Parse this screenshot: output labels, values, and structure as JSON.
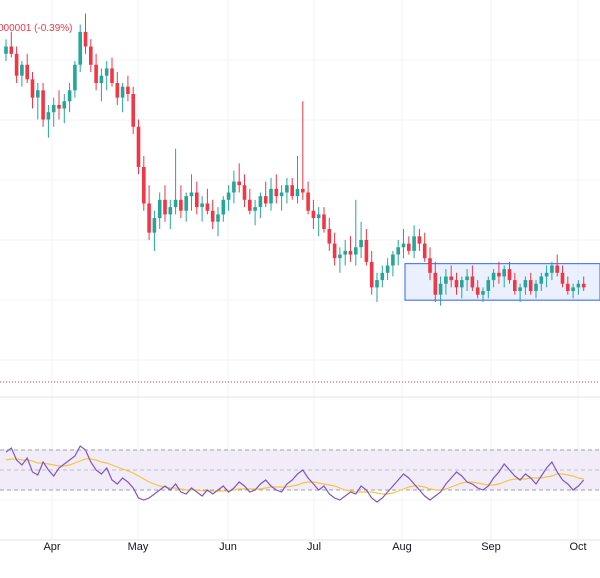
{
  "header": {
    "change_text": "000001 (-0.39%)"
  },
  "colors": {
    "up": "#26a69a",
    "down": "#f23645",
    "grid": "#f0f3fa",
    "range_box_stroke": "#2962ff",
    "range_box_fill": "#dbe4ff",
    "rsi_line": "#7e57c2",
    "rsi_ma": "#f5c542",
    "rsi_band": "#ede7f6",
    "rsi_band_border": "#9e9eb0",
    "price_line": "#f23645"
  },
  "chart_data": [
    {
      "type": "candlestick",
      "months": [
        "Apr",
        "May",
        "Jun",
        "Jul",
        "Aug",
        "Sep",
        "Oct"
      ],
      "price_scale": {
        "min": 0,
        "max": 100,
        "note_units": "relative"
      },
      "range_box": {
        "start": "2024-08-01",
        "end": "2024-10-09",
        "low": 20.5,
        "high": 30.5
      },
      "current_price_line": 0.6,
      "candles": [
        [
          88,
          92,
          86,
          90
        ],
        [
          90,
          94,
          87,
          88
        ],
        [
          88,
          90,
          80,
          82
        ],
        [
          82,
          86,
          79,
          85
        ],
        [
          85,
          88,
          80,
          81
        ],
        [
          81,
          83,
          73,
          76
        ],
        [
          76,
          80,
          70,
          78
        ],
        [
          78,
          80,
          68,
          70
        ],
        [
          70,
          74,
          65,
          72
        ],
        [
          72,
          76,
          68,
          74
        ],
        [
          74,
          78,
          70,
          73
        ],
        [
          73,
          77,
          69,
          75
        ],
        [
          75,
          80,
          72,
          78
        ],
        [
          78,
          86,
          76,
          85
        ],
        [
          85,
          96,
          83,
          94
        ],
        [
          94,
          99,
          88,
          90
        ],
        [
          90,
          92,
          83,
          85
        ],
        [
          85,
          88,
          78,
          80
        ],
        [
          80,
          84,
          75,
          82
        ],
        [
          82,
          86,
          78,
          84
        ],
        [
          84,
          87,
          79,
          80
        ],
        [
          80,
          83,
          74,
          76
        ],
        [
          76,
          80,
          72,
          79
        ],
        [
          79,
          82,
          75,
          77
        ],
        [
          77,
          79,
          66,
          68
        ],
        [
          68,
          70,
          55,
          57
        ],
        [
          57,
          60,
          45,
          47
        ],
        [
          47,
          52,
          37,
          39
        ],
        [
          39,
          45,
          34,
          43
        ],
        [
          43,
          50,
          40,
          48
        ],
        [
          48,
          52,
          42,
          44
        ],
        [
          44,
          48,
          40,
          46
        ],
        [
          46,
          62,
          44,
          48
        ],
        [
          48,
          52,
          43,
          45
        ],
        [
          45,
          50,
          42,
          49
        ],
        [
          49,
          55,
          45,
          50
        ],
        [
          50,
          53,
          44,
          46
        ],
        [
          46,
          49,
          42,
          47
        ],
        [
          47,
          51,
          44,
          45
        ],
        [
          45,
          48,
          40,
          42
        ],
        [
          42,
          46,
          38,
          44
        ],
        [
          44,
          49,
          42,
          48
        ],
        [
          48,
          52,
          45,
          50
        ],
        [
          50,
          56,
          47,
          53
        ],
        [
          53,
          58,
          50,
          52
        ],
        [
          52,
          55,
          46,
          48
        ],
        [
          48,
          51,
          44,
          45
        ],
        [
          45,
          48,
          41,
          46
        ],
        [
          46,
          50,
          43,
          49
        ],
        [
          49,
          53,
          46,
          47
        ],
        [
          47,
          54,
          45,
          51
        ],
        [
          51,
          55,
          47,
          49
        ],
        [
          49,
          52,
          45,
          50
        ],
        [
          50,
          54,
          47,
          52
        ],
        [
          52,
          54,
          48,
          49
        ],
        [
          49,
          60,
          47,
          51
        ],
        [
          51,
          75,
          48,
          50
        ],
        [
          50,
          53,
          44,
          45
        ],
        [
          45,
          48,
          40,
          43
        ],
        [
          43,
          46,
          38,
          44
        ],
        [
          44,
          46,
          39,
          40
        ],
        [
          40,
          43,
          34,
          36
        ],
        [
          36,
          39,
          30,
          32
        ],
        [
          32,
          35,
          28,
          33
        ],
        [
          33,
          37,
          30,
          34
        ],
        [
          34,
          38,
          31,
          33
        ],
        [
          33,
          48,
          30,
          35
        ],
        [
          35,
          42,
          32,
          37
        ],
        [
          37,
          40,
          30,
          31
        ],
        [
          31,
          34,
          22,
          24
        ],
        [
          24,
          28,
          20,
          26
        ],
        [
          26,
          30,
          24,
          28
        ],
        [
          28,
          32,
          26,
          30
        ],
        [
          30,
          34,
          27,
          33
        ],
        [
          33,
          37,
          30,
          35
        ],
        [
          35,
          40,
          32,
          36
        ],
        [
          36,
          38,
          33,
          34
        ],
        [
          34,
          41,
          32,
          38
        ],
        [
          38,
          40,
          34,
          36
        ],
        [
          36,
          39,
          31,
          32
        ],
        [
          32,
          35,
          26,
          28
        ],
        [
          28,
          31,
          20,
          22
        ],
        [
          22,
          27,
          19,
          25
        ],
        [
          25,
          29,
          22,
          27
        ],
        [
          27,
          30,
          24,
          26
        ],
        [
          26,
          28,
          22,
          24
        ],
        [
          24,
          27,
          21,
          26
        ],
        [
          26,
          29,
          23,
          27
        ],
        [
          27,
          30,
          23,
          24
        ],
        [
          24,
          26,
          21,
          22
        ],
        [
          22,
          24,
          20,
          23
        ],
        [
          23,
          27,
          21,
          26
        ],
        [
          26,
          29,
          24,
          28
        ],
        [
          28,
          31,
          25,
          27
        ],
        [
          27,
          30,
          24,
          29
        ],
        [
          29,
          31,
          25,
          26
        ],
        [
          26,
          28,
          22,
          23
        ],
        [
          23,
          25,
          20,
          24
        ],
        [
          24,
          27,
          22,
          26
        ],
        [
          26,
          28,
          22,
          23
        ],
        [
          23,
          26,
          21,
          25
        ],
        [
          25,
          28,
          23,
          27
        ],
        [
          27,
          30,
          24,
          28
        ],
        [
          28,
          31,
          26,
          30
        ],
        [
          30,
          33,
          27,
          28
        ],
        [
          28,
          30,
          24,
          25
        ],
        [
          25,
          27,
          22,
          23
        ],
        [
          23,
          25,
          21,
          24
        ],
        [
          24,
          26,
          22,
          25
        ],
        [
          25,
          27,
          23,
          24
        ]
      ]
    },
    {
      "type": "line",
      "indicator": "RSI",
      "ylim": [
        0,
        100
      ],
      "bands": [
        30,
        50,
        70
      ],
      "series": [
        {
          "values": [
            68,
            72,
            60,
            55,
            62,
            48,
            45,
            58,
            50,
            44,
            52,
            56,
            60,
            64,
            74,
            70,
            58,
            50,
            46,
            52,
            40,
            36,
            42,
            38,
            32,
            22,
            20,
            22,
            26,
            30,
            34,
            30,
            36,
            28,
            26,
            32,
            28,
            24,
            30,
            26,
            30,
            34,
            28,
            32,
            38,
            34,
            28,
            30,
            36,
            40,
            34,
            30,
            28,
            36,
            40,
            46,
            50,
            42,
            36,
            30,
            34,
            26,
            22,
            20,
            24,
            28,
            26,
            34,
            30,
            22,
            18,
            22,
            28,
            34,
            40,
            46,
            42,
            36,
            30,
            24,
            20,
            24,
            28,
            36,
            42,
            48,
            44,
            38,
            36,
            32,
            30,
            34,
            42,
            48,
            56,
            50,
            44,
            40,
            46,
            42,
            36,
            44,
            52,
            58,
            48,
            40,
            36,
            30,
            34,
            40
          ]
        },
        {
          "values": [
            60,
            61,
            61,
            60,
            60,
            59,
            57,
            57,
            56,
            55,
            54,
            54,
            55,
            57,
            59,
            61,
            61,
            60,
            58,
            57,
            55,
            53,
            51,
            49,
            47,
            44,
            41,
            38,
            36,
            34,
            33,
            32,
            32,
            31,
            30,
            30,
            30,
            29,
            29,
            29,
            29,
            29,
            29,
            30,
            31,
            31,
            31,
            31,
            31,
            32,
            33,
            33,
            33,
            33,
            34,
            35,
            37,
            38,
            38,
            37,
            36,
            35,
            34,
            32,
            30,
            29,
            28,
            28,
            28,
            28,
            27,
            26,
            26,
            27,
            29,
            31,
            33,
            34,
            34,
            33,
            31,
            30,
            30,
            31,
            33,
            35,
            37,
            38,
            38,
            37,
            36,
            35,
            35,
            36,
            38,
            40,
            41,
            41,
            41,
            42,
            42,
            42,
            43,
            44,
            46,
            46,
            45,
            44,
            42,
            41
          ]
        }
      ]
    }
  ]
}
